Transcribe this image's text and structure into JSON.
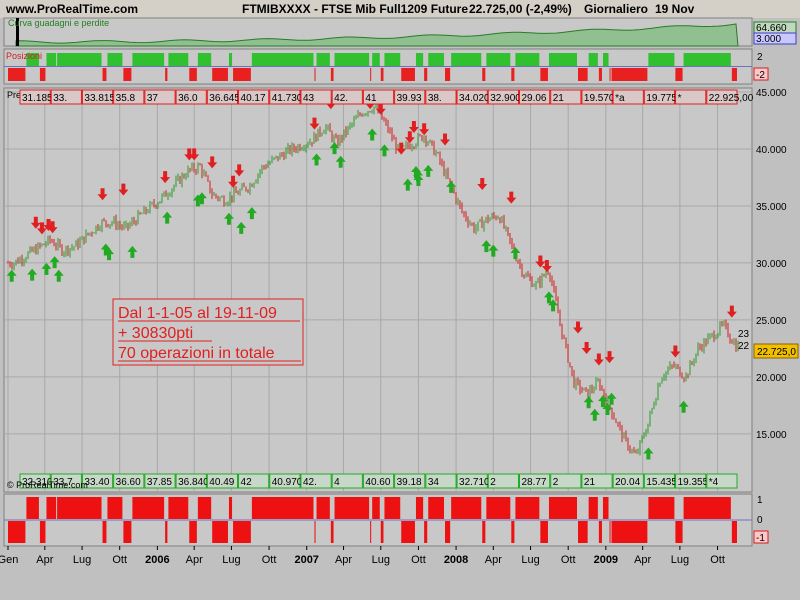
{
  "header": {
    "site": "www.ProRealTime.com",
    "instrument": "FTMIBXXXX - FTSE Mib Full1209 Future",
    "price_change": "22.725,00 (-2,49%)",
    "period": "Giornaliero",
    "date": "19 Nov"
  },
  "panels": {
    "equity_label": "Curva guadagni e perdite",
    "equity_top_value": "64.660",
    "equity_low_value": "3.000",
    "positions_label": "Posizioni",
    "positions_values": [
      "2",
      "-2"
    ],
    "price_label": "Prezzo",
    "price_current": "22.725,0",
    "price_right_labels": [
      "23",
      "22"
    ],
    "bottom_values": [
      "1",
      "0",
      "-1"
    ],
    "watermark": "© ProRealTime.com"
  },
  "colors": {
    "buy": "#22aa22",
    "sell": "#e02020",
    "equity_fill": "#90c090",
    "background": "#c0c0c0"
  },
  "annotation": {
    "line1": "Dal 1-1-05 al 19-11-09",
    "line2": "+ 30830pti",
    "line3": "70 operazioni in totale"
  },
  "top_trade_labels": [
    "31.185,00",
    "33.",
    "33.815,0",
    "35.8",
    "37",
    "36.0",
    "36.645,00",
    "40.17",
    "41.730",
    "43",
    "42.",
    "41",
    "39.93",
    "38.",
    "34.020",
    "32.900",
    "29.06",
    "21",
    "19.570,00",
    "*a",
    "19.775,00",
    "*",
    "22.925,00"
  ],
  "bottom_trade_labels": [
    "32.310,0",
    "33.7",
    "33.40",
    "36.60",
    "37.85",
    "36.840,00",
    "40.49",
    "42",
    "40.970",
    "42.",
    "4",
    "40.60",
    "39.18",
    "34",
    "32.710,00",
    "2",
    "28.77",
    "2",
    "21",
    "20.04",
    "15.435,0",
    "19.355,00",
    "*4"
  ],
  "chart_data": {
    "type": "line",
    "title": "FTMIBXXXX - FTSE Mib Full1209 Future",
    "xlabel": "",
    "ylabel": "",
    "ylim": [
      12000,
      45000
    ],
    "y_ticks": [
      "45.000",
      "40.000",
      "35.000",
      "30.000",
      "25.000",
      "20.000",
      "15.000"
    ],
    "x_ticks": [
      "Gen",
      "Apr",
      "Lug",
      "Ott",
      "2006",
      "Apr",
      "Lug",
      "Ott",
      "2007",
      "Apr",
      "Lug",
      "Ott",
      "2008",
      "Apr",
      "Lug",
      "Ott",
      "2009",
      "Apr",
      "Lug",
      "Ott"
    ],
    "grid": true,
    "series": [
      {
        "name": "",
        "x": [
          "2005-01",
          "2005-03",
          "2005-04",
          "2005-05",
          "2005-06",
          "2005-08",
          "2005-09",
          "2005-10",
          "2005-11",
          "2006-01",
          "2006-03",
          "2006-04",
          "2006-05",
          "2006-06",
          "2006-08",
          "2006-09",
          "2006-11",
          "2007-01",
          "2007-02",
          "2007-03",
          "2007-05",
          "2007-06",
          "2007-07",
          "2007-08",
          "2007-09",
          "2007-10",
          "2007-11",
          "2008-01",
          "2008-02",
          "2008-03",
          "2008-04",
          "2008-05",
          "2008-06",
          "2008-07",
          "2008-08",
          "2008-09",
          "2008-10",
          "2008-11",
          "2008-12",
          "2009-01",
          "2009-02",
          "2009-03",
          "2009-04",
          "2009-05",
          "2009-06",
          "2009-07",
          "2009-08",
          "2009-09",
          "2009-10",
          "2009-11"
        ],
        "values": [
          30000,
          31300,
          32000,
          31100,
          31500,
          33500,
          33600,
          33000,
          34000,
          35800,
          38000,
          38500,
          36000,
          35500,
          36800,
          38400,
          39800,
          40800,
          42000,
          40500,
          43200,
          43700,
          42000,
          39700,
          40500,
          41200,
          39500,
          34500,
          33000,
          33800,
          34200,
          31500,
          29000,
          28000,
          29500,
          24000,
          19500,
          18500,
          19500,
          17000,
          14500,
          13000,
          16000,
          20000,
          21000,
          20000,
          22500,
          23500,
          24500,
          22725
        ]
      }
    ]
  }
}
